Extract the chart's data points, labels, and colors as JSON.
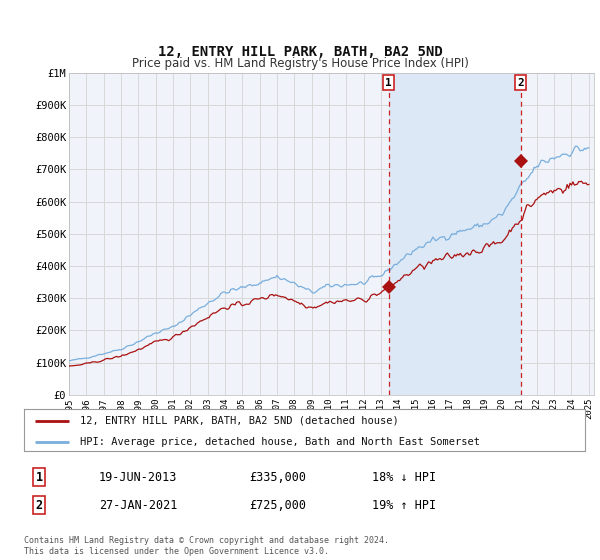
{
  "title": "12, ENTRY HILL PARK, BATH, BA2 5ND",
  "subtitle": "Price paid vs. HM Land Registry's House Price Index (HPI)",
  "background_color": "#ffffff",
  "plot_bg_color": "#f0f4fa",
  "grid_color": "#d8d8d8",
  "hpi_color": "#7aaedd",
  "price_color": "#aa1111",
  "dashed_line_color": "#cc2222",
  "shade_color": "#dce8f5",
  "ylim": [
    0,
    1000000
  ],
  "yticks": [
    0,
    100000,
    200000,
    300000,
    400000,
    500000,
    600000,
    700000,
    800000,
    900000,
    1000000
  ],
  "ytick_labels": [
    "£0",
    "£100K",
    "£200K",
    "£300K",
    "£400K",
    "£500K",
    "£600K",
    "£700K",
    "£800K",
    "£900K",
    "£1M"
  ],
  "year_start": 1995,
  "year_end": 2025,
  "transaction1": {
    "date": "19-JUN-2013",
    "price": 335000,
    "label": "1",
    "year": 2013.46
  },
  "transaction2": {
    "date": "27-JAN-2021",
    "price": 725000,
    "label": "2",
    "year": 2021.07
  },
  "legend_red_label": "12, ENTRY HILL PARK, BATH, BA2 5ND (detached house)",
  "legend_blue_label": "HPI: Average price, detached house, Bath and North East Somerset",
  "info1_label": "1",
  "info1_date": "19-JUN-2013",
  "info1_price": "£335,000",
  "info1_hpi": "18% ↓ HPI",
  "info2_label": "2",
  "info2_date": "27-JAN-2021",
  "info2_price": "£725,000",
  "info2_hpi": "19% ↑ HPI",
  "footer": "Contains HM Land Registry data © Crown copyright and database right 2024.\nThis data is licensed under the Open Government Licence v3.0."
}
